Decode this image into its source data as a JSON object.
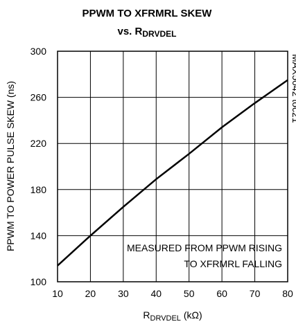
{
  "chart_data": {
    "type": "line",
    "title": "PPWM TO XFRMRL SKEW",
    "subtitle": {
      "text": "vs. R",
      "subscript": "DRVDEL"
    },
    "x_label": {
      "text": "R",
      "subscript": "DRVDEL",
      "suffix": " (kΩ)"
    },
    "y_label": "PPWM TO POWER PULSE SKEW (ns)",
    "annotation": [
      "MEASURED FROM PPWM RISING",
      "TO XFRMRL FALLING"
    ],
    "side_note": "MAX5042 toc21",
    "x": [
      10,
      20,
      30,
      40,
      50,
      60,
      70,
      80
    ],
    "series": [
      {
        "name": "skew",
        "color": "#000000",
        "values": [
          114,
          140,
          165,
          189,
          211,
          234,
          255,
          275
        ]
      }
    ],
    "xlim": [
      10,
      80
    ],
    "xticks": [
      10,
      20,
      30,
      40,
      50,
      60,
      70,
      80
    ],
    "ylim": [
      100,
      300
    ],
    "yticks": [
      100,
      140,
      180,
      220,
      260,
      300
    ],
    "grid": true
  }
}
